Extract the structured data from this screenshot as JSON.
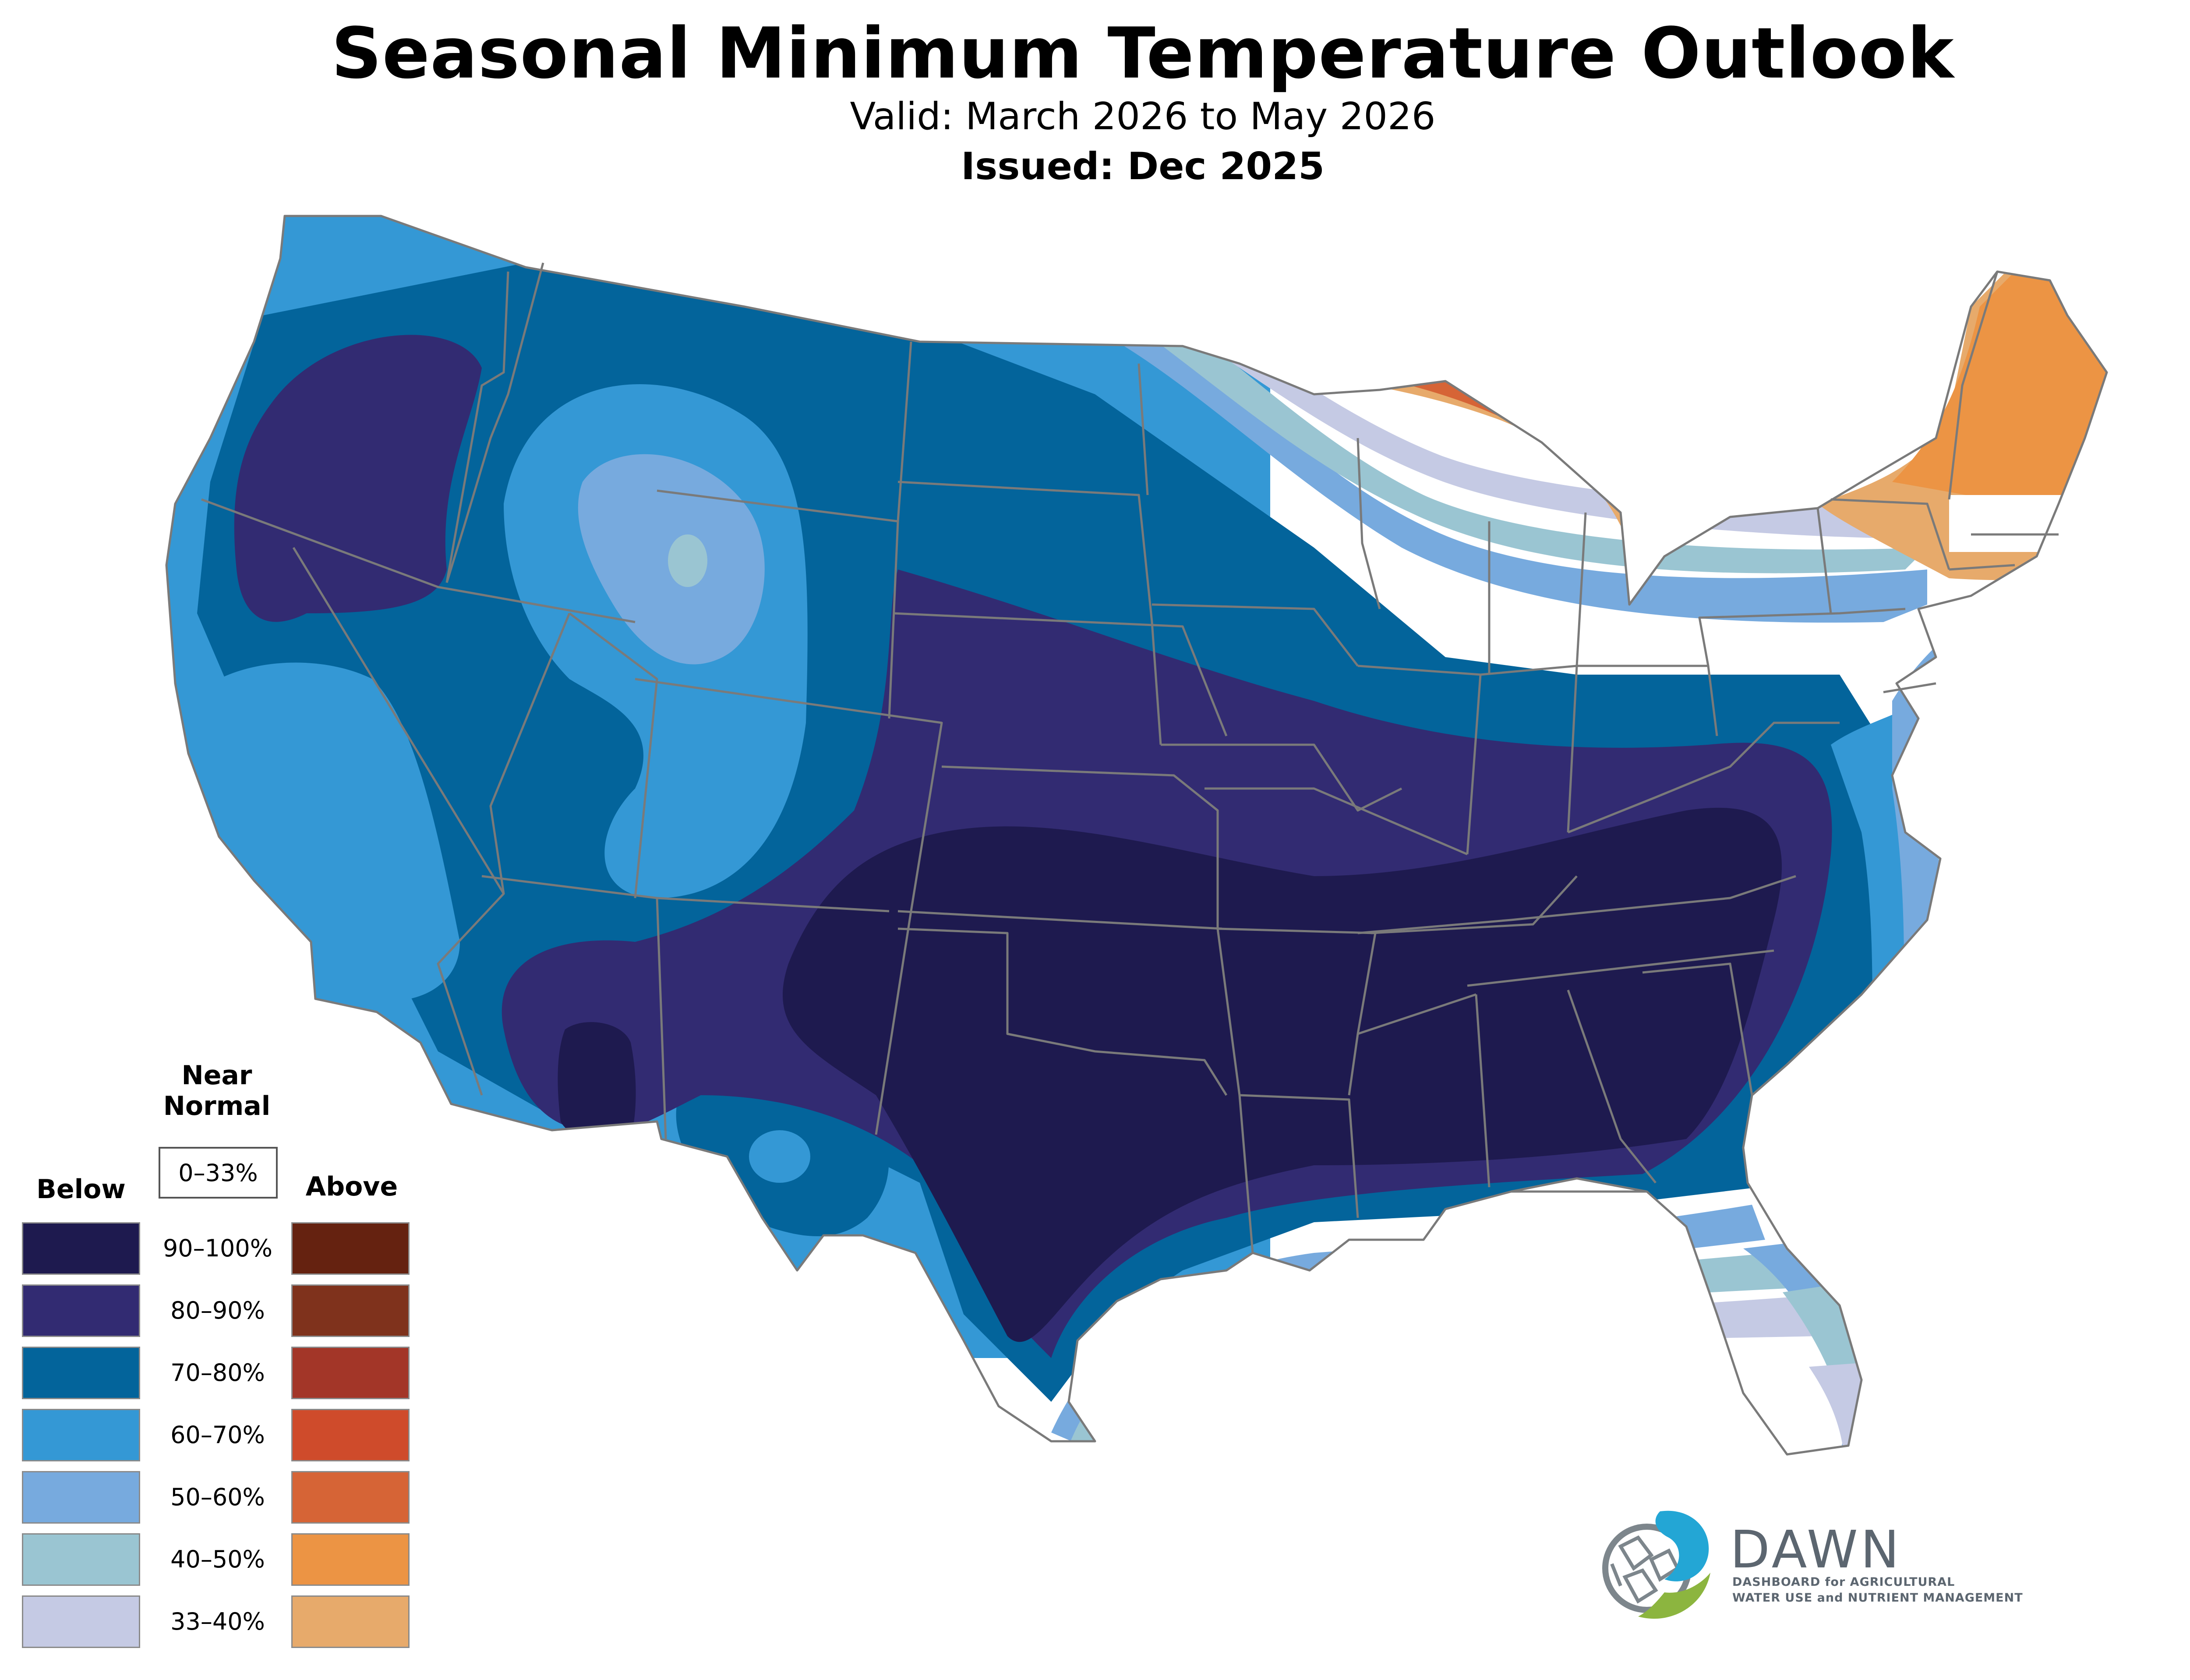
{
  "header": {
    "title": "Seasonal Minimum Temperature Outlook",
    "valid": "Valid: March 2026 to May 2026",
    "issued": "Issued: Dec 2025"
  },
  "legend": {
    "below_label": "Below",
    "above_label": "Above",
    "near_normal_label_1": "Near",
    "near_normal_label_2": "Normal",
    "near_normal_range": "0–33%",
    "ranges": [
      "90–100%",
      "80–90%",
      "70–80%",
      "60–70%",
      "50–60%",
      "40–50%",
      "33–40%"
    ],
    "below_colors": [
      "#1e1a4f",
      "#322b72",
      "#03649b",
      "#3498d5",
      "#77aade",
      "#9ac5d2",
      "#c5cae4"
    ],
    "above_colors": [
      "#652210",
      "#7f321c",
      "#a33628",
      "#cf4b2b",
      "#d66436",
      "#ec9444",
      "#e7aa6b"
    ]
  },
  "logo": {
    "name": "DAWN",
    "tagline_1": "DASHBOARD for AGRICULTURAL",
    "tagline_2": "WATER USE and NUTRIENT MANAGEMENT"
  },
  "colors": {
    "state_lines": "#7a7a7a",
    "logo_blue": "#23a6d5",
    "logo_green": "#8cb53f",
    "logo_gray": "#7d868c"
  }
}
